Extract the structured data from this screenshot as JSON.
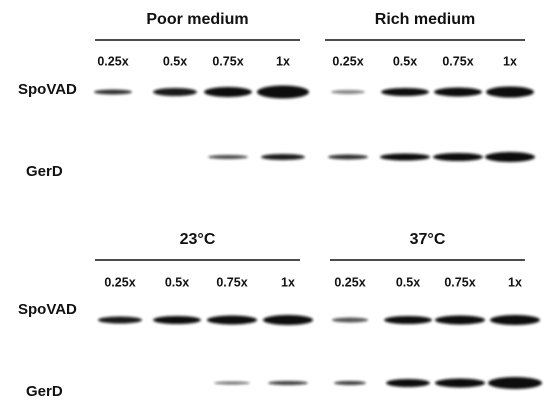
{
  "panels": [
    {
      "groups": [
        {
          "title": "Poor medium",
          "lanes": [
            "0.25x",
            "0.5x",
            "0.75x",
            "1x"
          ]
        },
        {
          "title": "Rich medium",
          "lanes": [
            "0.25x",
            "0.5x",
            "0.75x",
            "1x"
          ]
        }
      ],
      "rows": [
        "SpoVAD",
        "GerD"
      ]
    },
    {
      "groups": [
        {
          "title": "23°C",
          "lanes": [
            "0.25x",
            "0.5x",
            "0.75x",
            "1x"
          ]
        },
        {
          "title": "37°C",
          "lanes": [
            "0.25x",
            "0.5x",
            "0.75x",
            "1x"
          ]
        }
      ],
      "rows": [
        "SpoVAD",
        "GerD"
      ]
    }
  ]
}
